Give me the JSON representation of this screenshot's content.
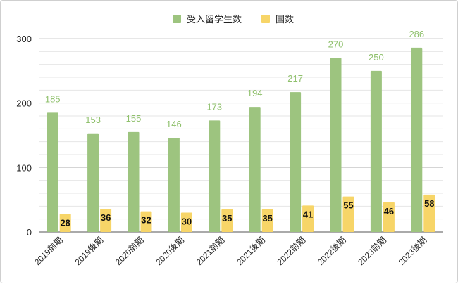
{
  "chart_data": {
    "type": "bar",
    "categories": [
      "2019前期",
      "2019後期",
      "2020前期",
      "2020後期",
      "2021前期",
      "2021後期",
      "2022前期",
      "2022後期",
      "2023前期",
      "2023後期"
    ],
    "series": [
      {
        "name": "受入留学生数",
        "color": "#9dc47f",
        "values": [
          185,
          153,
          155,
          146,
          173,
          194,
          217,
          270,
          250,
          286
        ]
      },
      {
        "name": "国数",
        "color": "#f7d568",
        "values": [
          28,
          36,
          32,
          30,
          35,
          35,
          41,
          55,
          46,
          58
        ]
      }
    ],
    "yticks": [
      0,
      100,
      200,
      300
    ],
    "ylim": [
      0,
      300
    ],
    "grid": true,
    "legend": "top-center"
  }
}
